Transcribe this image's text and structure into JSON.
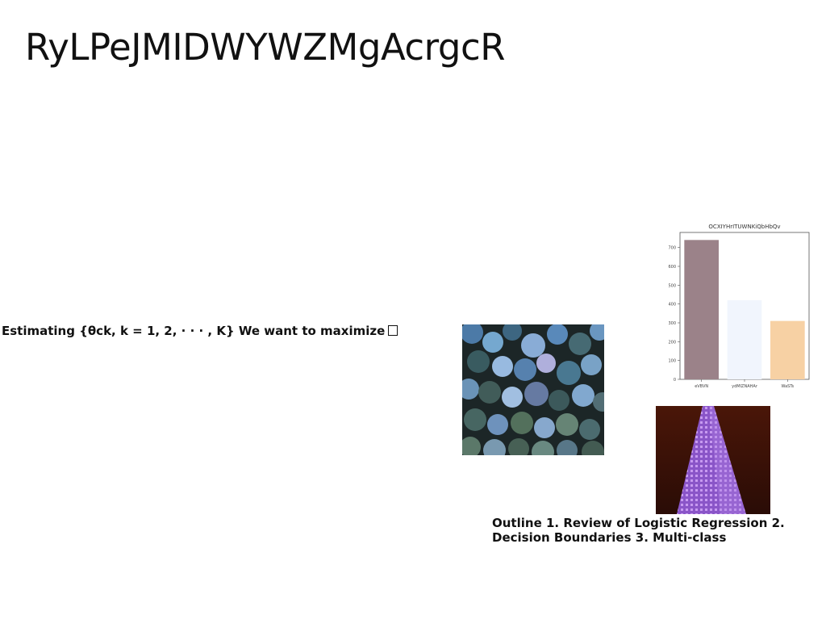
{
  "slide": {
    "title": "RyLPeJMIDWYWZMgAcrgcR",
    "estimate_text": "Estimating {θck, k = 1, 2, · · · , K} We want to maximize",
    "outline_text": "Outline 1. Review of Logistic Regression 2. Decision Boundaries 3. Multi-class"
  },
  "images": {
    "forest": "aerial-forest-photo",
    "tower": "purple-skyscraper-photo"
  },
  "chart_data": {
    "type": "bar",
    "title": "OCXIYHrITUWNKiQbHbQv",
    "categories": [
      "eVBVN",
      "ydMIZNAHAr",
      "WaSTs"
    ],
    "values": [
      740,
      420,
      310
    ],
    "colors": [
      "#9b8289",
      "#f1f5fd",
      "#f7d1a4"
    ],
    "ylim": [
      0,
      780
    ],
    "yticks": [
      0,
      100,
      200,
      300,
      400,
      500,
      600,
      700
    ],
    "grid": false
  }
}
